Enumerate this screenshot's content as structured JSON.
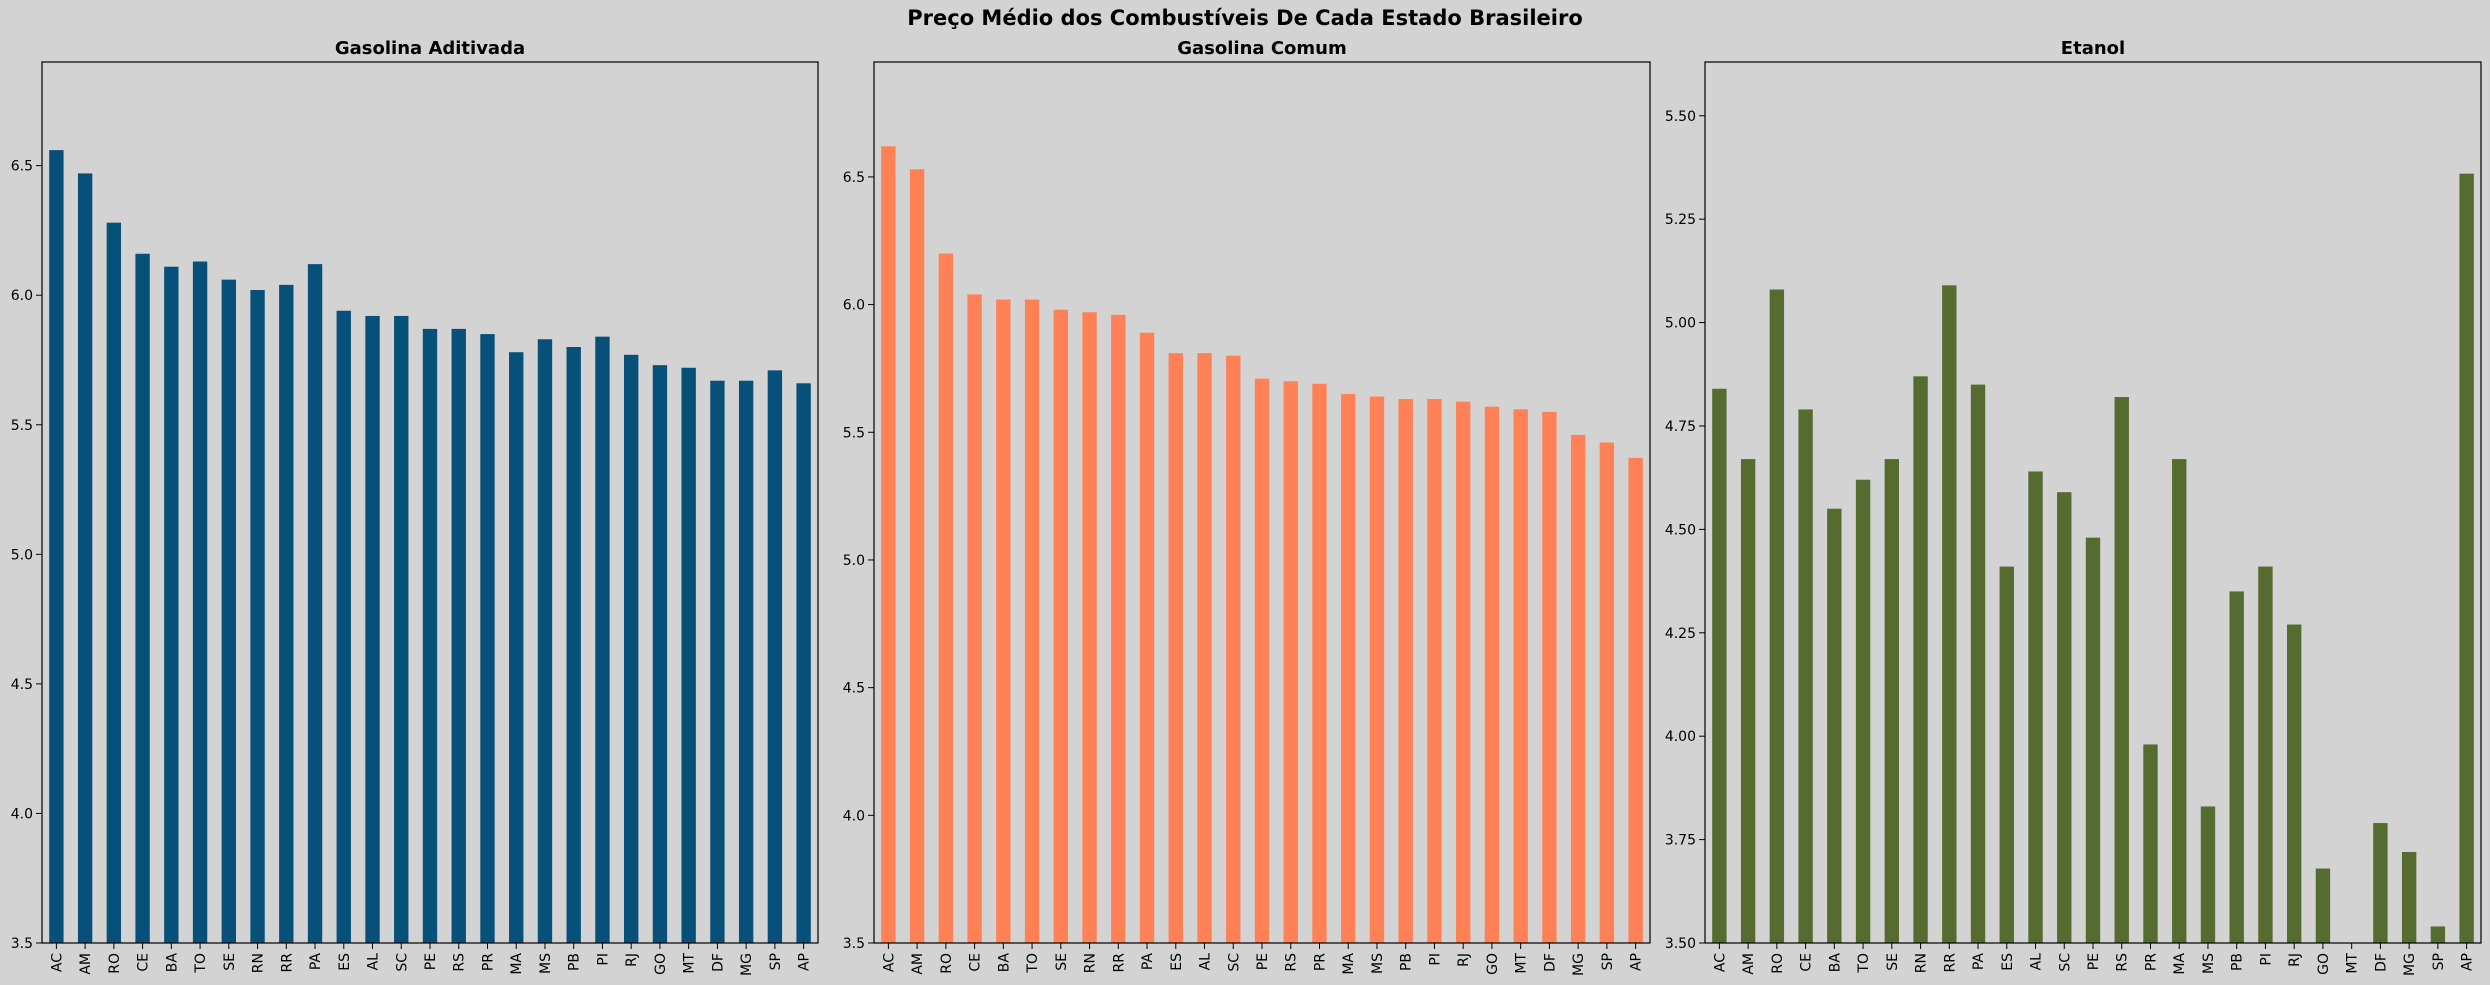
{
  "suptitle": "Preço Médio dos Combustíveis De Cada Estado Brasileiro",
  "chart_data": [
    {
      "type": "bar",
      "title": "Gasolina Aditivada",
      "color": "#06507a",
      "ylim": [
        3.5,
        6.9
      ],
      "yticks": [
        "3.5",
        "4.0",
        "4.5",
        "5.0",
        "5.5",
        "6.0",
        "6.5"
      ],
      "categories": [
        "AC",
        "AM",
        "RO",
        "CE",
        "BA",
        "TO",
        "SE",
        "RN",
        "RR",
        "PA",
        "ES",
        "AL",
        "SC",
        "PE",
        "RS",
        "PR",
        "MA",
        "MS",
        "PB",
        "PI",
        "RJ",
        "GO",
        "MT",
        "DF",
        "MG",
        "SP",
        "AP"
      ],
      "values": [
        6.56,
        6.47,
        6.28,
        6.16,
        6.11,
        6.13,
        6.06,
        6.02,
        6.04,
        6.12,
        5.94,
        5.92,
        5.92,
        5.87,
        5.87,
        5.85,
        5.78,
        5.83,
        5.8,
        5.84,
        5.77,
        5.73,
        5.72,
        5.67,
        5.67,
        5.71,
        5.66
      ]
    },
    {
      "type": "bar",
      "title": "Gasolina Comum",
      "color": "#ff8155",
      "ylim": [
        3.5,
        6.95
      ],
      "yticks": [
        "3.5",
        "4.0",
        "4.5",
        "5.0",
        "5.5",
        "6.0",
        "6.5"
      ],
      "categories": [
        "AC",
        "AM",
        "RO",
        "CE",
        "BA",
        "TO",
        "SE",
        "RN",
        "RR",
        "PA",
        "ES",
        "AL",
        "SC",
        "PE",
        "RS",
        "PR",
        "MA",
        "MS",
        "PB",
        "PI",
        "RJ",
        "GO",
        "MT",
        "DF",
        "MG",
        "SP",
        "AP"
      ],
      "values": [
        6.62,
        6.53,
        6.2,
        6.04,
        6.02,
        6.02,
        5.98,
        5.97,
        5.96,
        5.89,
        5.81,
        5.81,
        5.8,
        5.71,
        5.7,
        5.69,
        5.65,
        5.64,
        5.63,
        5.63,
        5.62,
        5.6,
        5.59,
        5.58,
        5.49,
        5.46,
        5.4
      ]
    },
    {
      "type": "bar",
      "title": "Etanol",
      "color": "#556b2f",
      "ylim": [
        3.5,
        5.63
      ],
      "yticks": [
        "3.50",
        "3.75",
        "4.00",
        "4.25",
        "4.50",
        "4.75",
        "5.00",
        "5.25",
        "5.50"
      ],
      "categories": [
        "AC",
        "AM",
        "RO",
        "CE",
        "BA",
        "TO",
        "SE",
        "RN",
        "RR",
        "PA",
        "ES",
        "AL",
        "SC",
        "PE",
        "RS",
        "PR",
        "MA",
        "MS",
        "PB",
        "PI",
        "RJ",
        "GO",
        "MT",
        "DF",
        "MG",
        "SP",
        "AP"
      ],
      "values": [
        4.84,
        4.67,
        5.08,
        4.79,
        4.55,
        4.62,
        4.67,
        4.87,
        5.09,
        4.85,
        4.41,
        4.64,
        4.59,
        4.48,
        4.82,
        3.98,
        4.67,
        3.83,
        4.35,
        4.41,
        4.27,
        3.68,
        3.5,
        3.79,
        3.72,
        3.54,
        5.36
      ]
    }
  ]
}
